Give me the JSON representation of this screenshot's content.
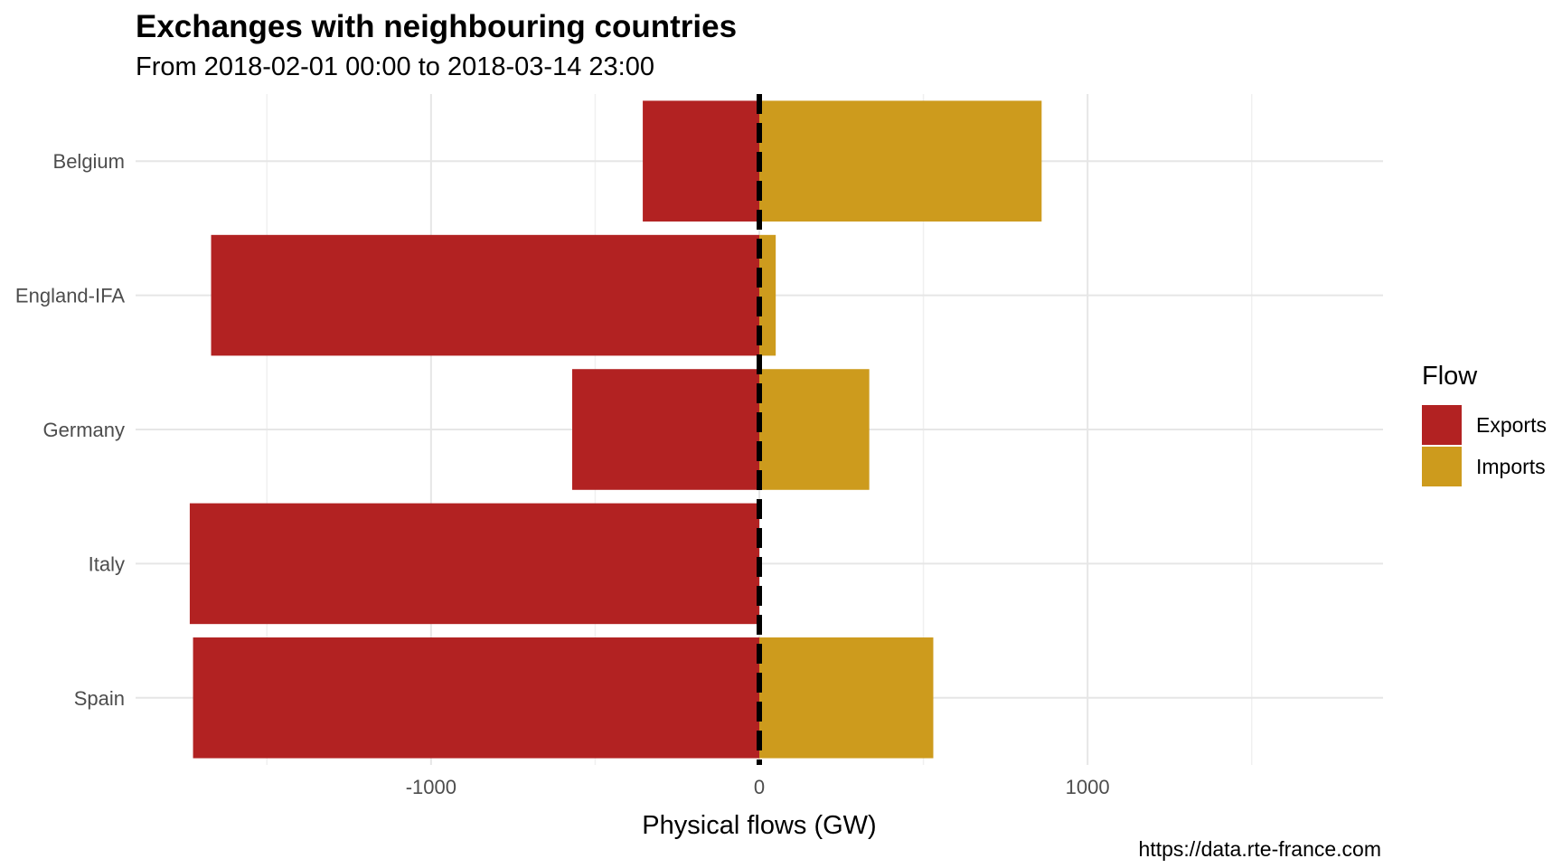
{
  "chart_data": {
    "type": "bar",
    "orientation": "horizontal",
    "stacked": "diverging",
    "title": "Exchanges with neighbouring countries",
    "subtitle": "From 2018-02-01 00:00 to 2018-03-14 23:00",
    "xlabel": "Physical flows (GW)",
    "ylabel": "",
    "caption": "https://data.rte-france.com",
    "categories": [
      "Belgium",
      "England-IFA",
      "Germany",
      "Italy",
      "Spain"
    ],
    "series": [
      {
        "name": "Exports",
        "color": "#B22222",
        "values": [
          -355,
          -1670,
          -570,
          -1735,
          -1725
        ]
      },
      {
        "name": "Imports",
        "color": "#CD9B1D",
        "values": [
          860,
          50,
          335,
          0,
          530
        ]
      }
    ],
    "xlim": [
      -1900,
      1900
    ],
    "xticks": [
      -1000,
      0,
      1000
    ],
    "xtick_labels": [
      "-1000",
      "0",
      "1000"
    ],
    "reference_line": {
      "x": 0,
      "style": "dashed",
      "color": "#000000"
    },
    "grid": true,
    "legend": {
      "title": "Flow",
      "position": "right"
    }
  }
}
